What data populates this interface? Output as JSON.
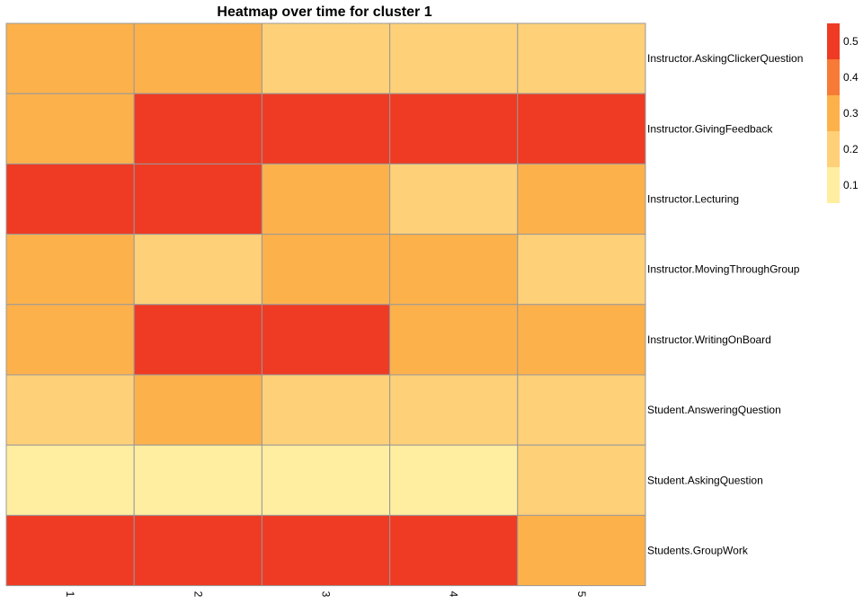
{
  "chart_data": {
    "type": "heatmap",
    "title": "Heatmap over time for cluster 1",
    "xlabel": "",
    "ylabel": "",
    "columns": [
      "1",
      "2",
      "3",
      "4",
      "5"
    ],
    "rows": [
      "Instructor.AskingClickerQuestion",
      "Instructor.GivingFeedback",
      "Instructor.Lecturing",
      "Instructor.MovingThroughGroup",
      "Instructor.WritingOnBoard",
      "Student.AnsweringQuestion",
      "Student.AskingQuestion",
      "Students.GroupWork"
    ],
    "values": [
      [
        0.3,
        0.3,
        0.2,
        0.2,
        0.2
      ],
      [
        0.3,
        0.55,
        0.55,
        0.55,
        0.55
      ],
      [
        0.45,
        0.45,
        0.3,
        0.2,
        0.3
      ],
      [
        0.3,
        0.2,
        0.3,
        0.3,
        0.2
      ],
      [
        0.3,
        0.45,
        0.45,
        0.3,
        0.3
      ],
      [
        0.2,
        0.3,
        0.2,
        0.2,
        0.2
      ],
      [
        0.1,
        0.1,
        0.1,
        0.1,
        0.2
      ],
      [
        0.45,
        0.45,
        0.55,
        0.55,
        0.3
      ]
    ],
    "legend": {
      "placement": "top-right",
      "ticks": [
        "0.5",
        "0.4",
        "0.3",
        "0.2",
        "0.1"
      ],
      "bins": [
        {
          "min": 0.05,
          "max": 0.15,
          "color": "#FFEDA0"
        },
        {
          "min": 0.15,
          "max": 0.25,
          "color": "#FED078"
        },
        {
          "min": 0.25,
          "max": 0.35,
          "color": "#FDB14B"
        },
        {
          "min": 0.35,
          "max": 0.45,
          "color": "#F77A36"
        },
        {
          "min": 0.45,
          "max": 0.55,
          "color": "#EF3B23"
        }
      ]
    },
    "cell_border_color": "#999999",
    "grid": false
  }
}
